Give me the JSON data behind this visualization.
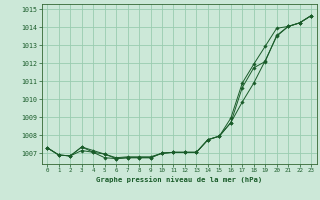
{
  "title": "Graphe pression niveau de la mer (hPa)",
  "background_color": "#cce8d8",
  "grid_color": "#99ccb0",
  "line_color": "#1a5c2a",
  "spine_color": "#336633",
  "xlim_min": -0.5,
  "xlim_max": 23.5,
  "ylim_min": 1006.4,
  "ylim_max": 1015.3,
  "yticks": [
    1007,
    1008,
    1009,
    1010,
    1011,
    1012,
    1013,
    1014,
    1015
  ],
  "xticks": [
    0,
    1,
    2,
    3,
    4,
    5,
    6,
    7,
    8,
    9,
    10,
    11,
    12,
    13,
    14,
    15,
    16,
    17,
    18,
    19,
    20,
    21,
    22,
    23
  ],
  "line1": [
    1007.3,
    1006.9,
    1006.85,
    1007.15,
    1007.05,
    1006.75,
    1006.7,
    1006.75,
    1006.75,
    1006.75,
    1007.0,
    1007.05,
    1007.05,
    1007.05,
    1007.75,
    1007.95,
    1008.7,
    1009.85,
    1010.9,
    1012.15,
    1013.5,
    1014.05,
    1014.25,
    1014.65
  ],
  "line2": [
    1007.3,
    1006.9,
    1006.85,
    1007.35,
    1007.05,
    1006.95,
    1006.7,
    1006.75,
    1006.75,
    1006.75,
    1007.0,
    1007.05,
    1007.05,
    1007.05,
    1007.75,
    1007.95,
    1008.7,
    1010.65,
    1011.75,
    1012.1,
    1013.55,
    1014.05,
    1014.25,
    1014.65
  ],
  "line3": [
    1007.3,
    1006.9,
    1006.85,
    1007.35,
    1007.15,
    1006.95,
    1006.75,
    1006.8,
    1006.8,
    1006.8,
    1007.0,
    1007.05,
    1007.05,
    1007.05,
    1007.75,
    1007.95,
    1008.95,
    1010.9,
    1011.95,
    1012.95,
    1013.95,
    1014.05,
    1014.25,
    1014.65
  ]
}
